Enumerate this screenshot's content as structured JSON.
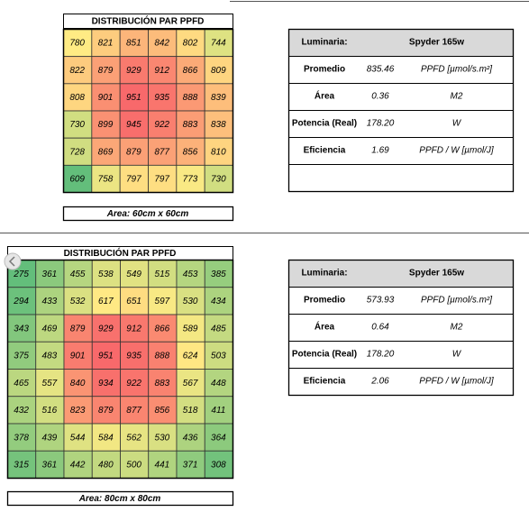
{
  "sections": [
    {
      "grid": {
        "title": "DISTRIBUCIÓN PAR PPFD",
        "rows": [
          [
            780,
            821,
            851,
            842,
            802,
            744
          ],
          [
            822,
            879,
            929,
            912,
            866,
            809
          ],
          [
            808,
            901,
            951,
            935,
            888,
            839
          ],
          [
            730,
            899,
            945,
            922,
            883,
            838
          ],
          [
            728,
            869,
            879,
            877,
            856,
            810
          ],
          [
            609,
            758,
            797,
            797,
            773,
            730
          ]
        ]
      },
      "area": "Area: 60cm x 60cm",
      "info": {
        "header": [
          "Luminaria:",
          "Spyder 165w"
        ],
        "rows": [
          [
            "Promedio",
            "835.46",
            "PPFD [µmol/s.m²]"
          ],
          [
            "Área",
            "0.36",
            "M2"
          ],
          [
            "Potencia (Real)",
            "178.20",
            "W"
          ],
          [
            "Eficiencia",
            "1.69",
            "PPFD / W  [µmol/J]"
          ]
        ]
      }
    },
    {
      "grid": {
        "title": "DISTRIBUCIÓN PAR PPFD",
        "rows": [
          [
            275,
            361,
            455,
            538,
            549,
            515,
            453,
            385
          ],
          [
            294,
            433,
            532,
            617,
            651,
            597,
            530,
            434
          ],
          [
            343,
            469,
            879,
            929,
            912,
            866,
            589,
            485
          ],
          [
            375,
            483,
            901,
            951,
            935,
            888,
            624,
            503
          ],
          [
            465,
            557,
            840,
            934,
            922,
            883,
            567,
            448
          ],
          [
            432,
            516,
            823,
            879,
            877,
            856,
            518,
            411
          ],
          [
            378,
            439,
            544,
            584,
            562,
            530,
            436,
            364
          ],
          [
            315,
            361,
            442,
            480,
            500,
            441,
            371,
            308
          ]
        ]
      },
      "area": "Area: 80cm x 80cm",
      "info": {
        "header": [
          "Luminaria:",
          "Spyder 165w"
        ],
        "rows": [
          [
            "Promedio",
            "573.93",
            "PPFD [µmol/s.m²]"
          ],
          [
            "Área",
            "0.64",
            "M2"
          ],
          [
            "Potencia (Real)",
            "178.20",
            "W"
          ],
          [
            "Eficiencia",
            "2.06",
            "PPFD / W  [µmol/J]"
          ]
        ]
      }
    }
  ]
}
